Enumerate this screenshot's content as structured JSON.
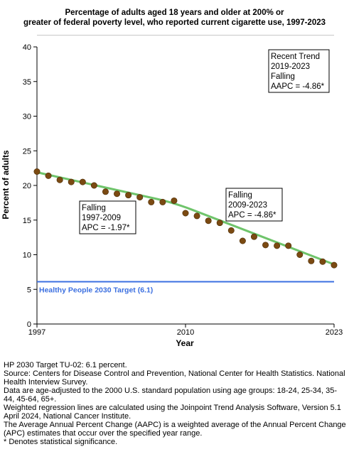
{
  "chart_data": {
    "type": "line",
    "title_lines": [
      "Percentage of adults aged 18 years and older at 200% or",
      "greater of federal poverty level, who reported current cigarette use, 1997-2023"
    ],
    "xlabel": "Year",
    "ylabel": "Percent of adults",
    "xlim": [
      1997,
      2023
    ],
    "ylim": [
      0,
      40
    ],
    "x_ticks": [
      1997,
      2010,
      2023
    ],
    "y_ticks": [
      0,
      5,
      10,
      15,
      20,
      25,
      30,
      35,
      40
    ],
    "grid": false,
    "series": [
      {
        "kind": "observed",
        "x": [
          1997,
          1998,
          1999,
          2000,
          2001,
          2002,
          2003,
          2004,
          2005,
          2006,
          2007,
          2008,
          2009,
          2010,
          2011,
          2012,
          2013,
          2014,
          2015,
          2016,
          2017,
          2018,
          2019,
          2020,
          2021,
          2022,
          2023
        ],
        "y": [
          22.0,
          21.4,
          20.8,
          20.5,
          20.5,
          20.0,
          19.1,
          18.8,
          18.6,
          18.3,
          17.6,
          17.6,
          17.8,
          16.0,
          15.6,
          14.9,
          14.6,
          13.5,
          12.0,
          12.6,
          11.4,
          11.3,
          11.3,
          10.0,
          9.1,
          9.0,
          8.5
        ],
        "color": "#7b4a12"
      },
      {
        "kind": "trend",
        "x": [
          1997,
          2009,
          2023
        ],
        "y": [
          21.9,
          17.5,
          8.6
        ],
        "color": "#6fc46b"
      }
    ],
    "target": {
      "value": 6.1,
      "label": "Healthy People 2030 Target (6.1)",
      "color": "#3b6fe0"
    },
    "annotations": [
      {
        "lines": [
          "Falling",
          "1997-2009",
          "APC = -1.97*"
        ]
      },
      {
        "lines": [
          "Falling",
          "2009-2023",
          "APC = -4.86*"
        ]
      },
      {
        "lines": [
          "Recent Trend",
          "2019-2023",
          "Falling",
          "AAPC = -4.86*"
        ]
      }
    ]
  },
  "notes": [
    "HP 2030 Target TU-02: 6.1 percent.",
    "Source: Centers for Disease Control and Prevention, National Center for Health Statistics. National Health Interview Survey.",
    "Data are age-adjusted to the 2000 U.S. standard population using age groups: 18-24, 25-34, 35-44, 45-64, 65+.",
    "Weighted regression lines are calculated using the Joinpoint Trend Analysis Software, Version 5.1 April 2024, National Cancer Institute.",
    "The Average Annual Percent Change (AAPC) is a weighted average of the Annual Percent Change (APC) estimates that occur over the specified year range.",
    "* Denotes statistical significance."
  ]
}
